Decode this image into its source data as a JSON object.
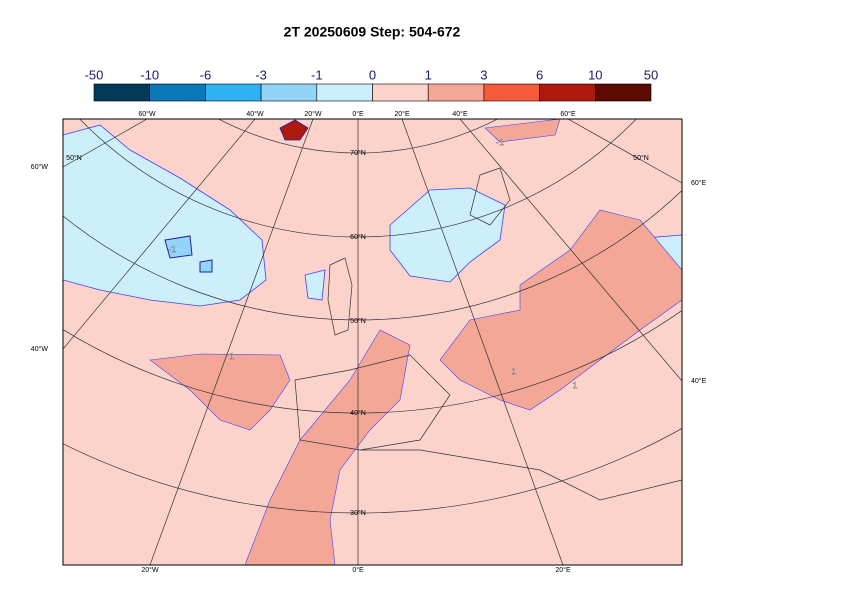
{
  "title": "2T 20250609 Step: 504-672",
  "legend": {
    "ticks": [
      -50,
      -10,
      -6,
      -3,
      -1,
      0,
      1,
      3,
      6,
      10,
      50
    ],
    "colors": [
      "#033a5a",
      "#0a78b8",
      "#2eb2f2",
      "#93d5f7",
      "#cdeefb",
      "#fcd3cb",
      "#f5a797",
      "#f55a3a",
      "#ae190d",
      "#5c0a02"
    ]
  },
  "map": {
    "top_labels": [
      "60°W",
      "40°W",
      "20°W",
      "0°E",
      "20°E",
      "40°E",
      "60°E"
    ],
    "bottom_labels": [
      "20°W",
      "0°E",
      "20°E"
    ],
    "side_labels": [
      "60°W",
      "40°W",
      "60°E",
      "40°E",
      "50°N",
      "50°N"
    ],
    "lat_labels": [
      "70°N",
      "60°N",
      "50°N",
      "40°N",
      "30°N"
    ],
    "contour_labels": [
      "-1",
      "1",
      "1",
      "1",
      "-1"
    ]
  }
}
